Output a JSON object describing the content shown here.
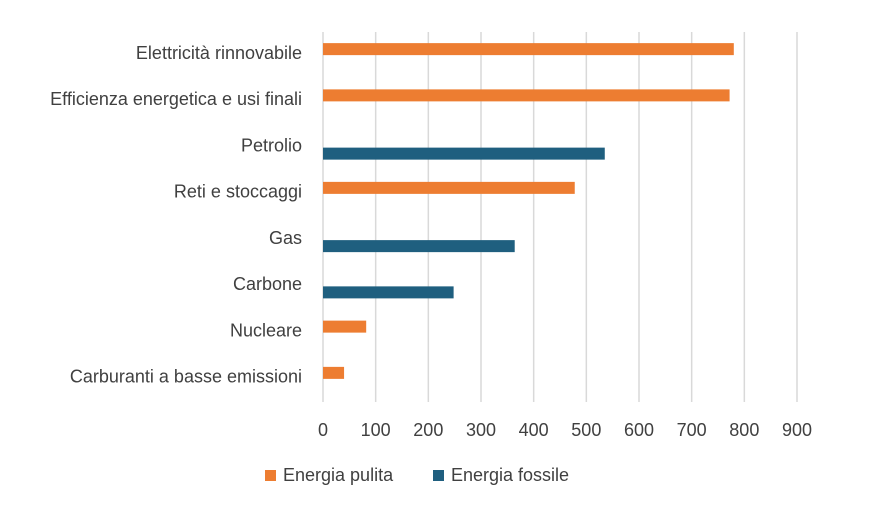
{
  "chart_data": {
    "type": "bar",
    "orientation": "horizontal",
    "title": "",
    "xlabel": "",
    "ylabel": "",
    "xlim": [
      0,
      900
    ],
    "xticks": [
      0,
      100,
      200,
      300,
      400,
      500,
      600,
      700,
      800,
      900
    ],
    "grid": true,
    "legend_position": "bottom",
    "categories": [
      "Elettricità rinnovabile",
      "Efficienza energetica e usi finali",
      "Petrolio",
      "Reti e stoccaggi",
      "Gas",
      "Carbone",
      "Nucleare",
      "Carburanti a basse emissioni"
    ],
    "series": [
      {
        "name": "Energia pulita",
        "color": "#ed7d31",
        "values": [
          780,
          772,
          null,
          478,
          null,
          null,
          82,
          40
        ]
      },
      {
        "name": "Energia fossile",
        "color": "#1f5f7f",
        "values": [
          null,
          null,
          535,
          null,
          364,
          248,
          null,
          null
        ]
      }
    ]
  }
}
